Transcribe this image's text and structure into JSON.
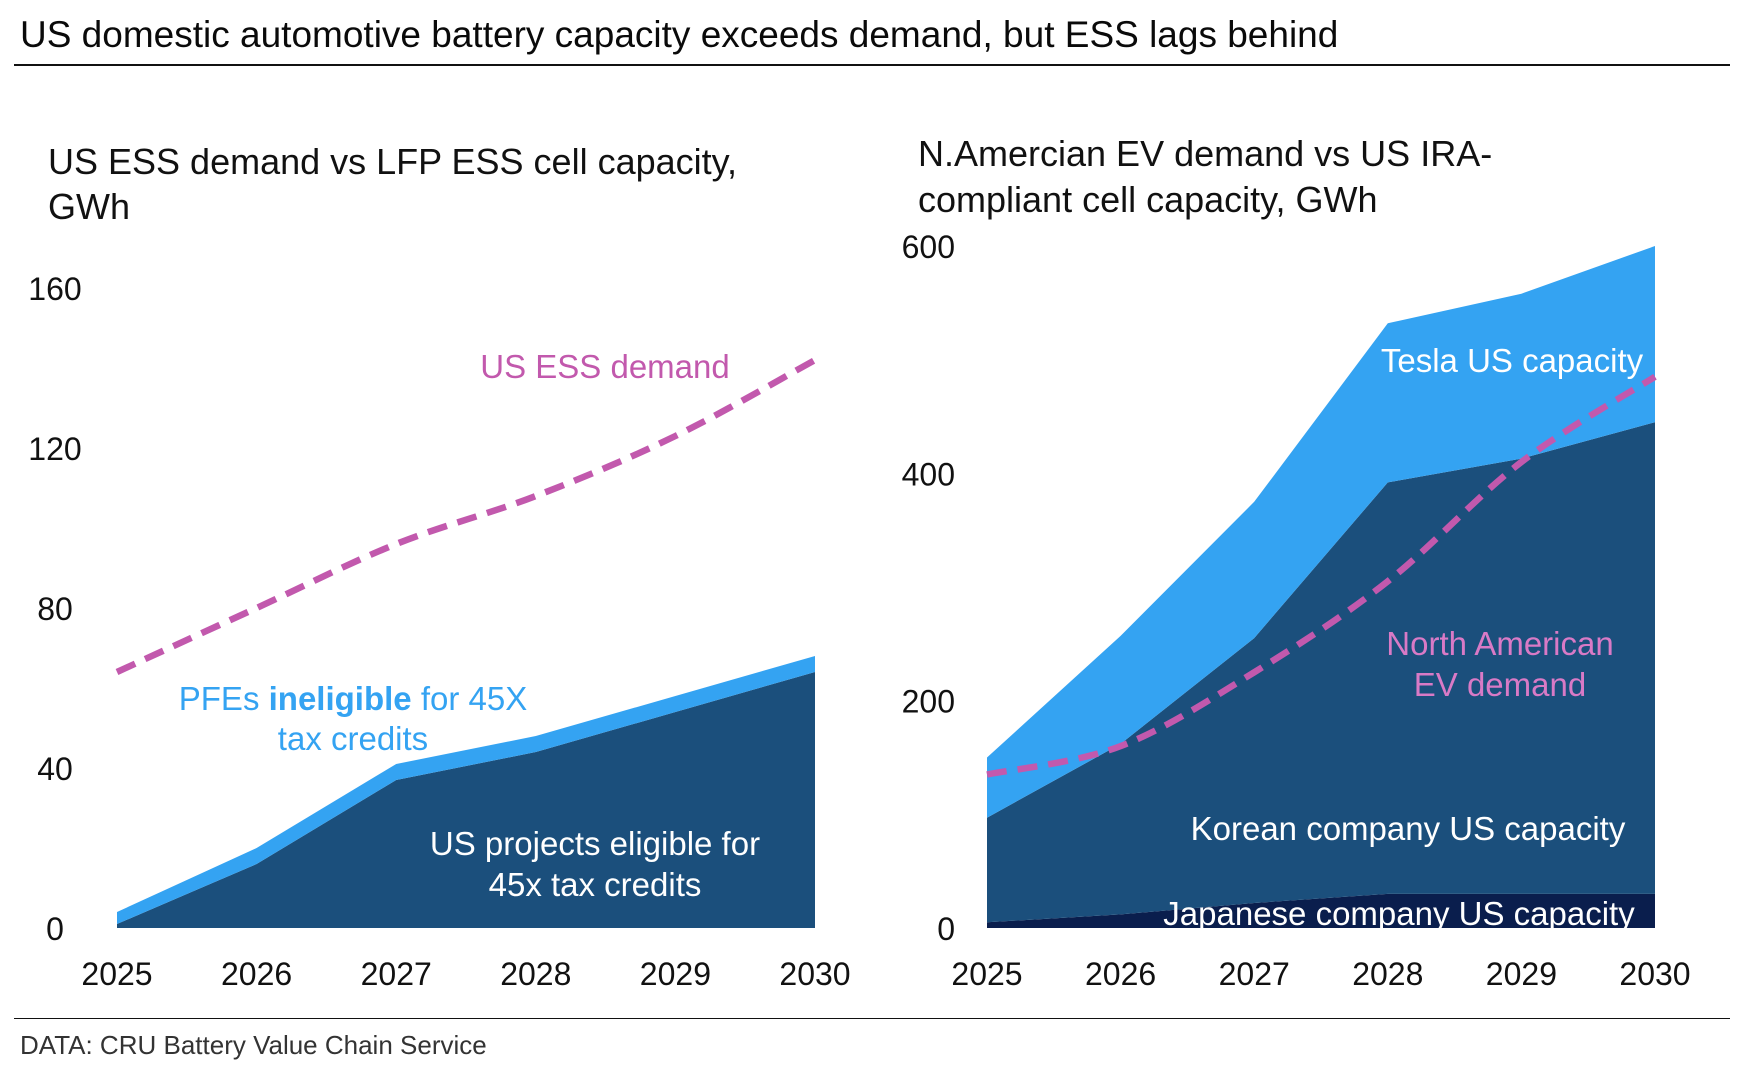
{
  "header": {
    "title": "US domestic automotive battery capacity exceeds demand, but ESS lags behind"
  },
  "footer": {
    "source": "DATA: CRU Battery Value Chain Service"
  },
  "colors": {
    "dark": "#1b4f7c",
    "light": "#34a3f2",
    "navy": "#0a1e4d",
    "pink": "#c259ad",
    "pink_light": "#d97ac6"
  },
  "chart_data": [
    {
      "type": "area",
      "title": "US ESS demand vs LFP ESS cell capacity, GWh",
      "x": [
        2025,
        2026,
        2027,
        2028,
        2029,
        2030
      ],
      "xtick_labels": [
        "2025",
        "2026",
        "2027",
        "2028",
        "2029",
        "2030"
      ],
      "ylim": [
        0,
        160
      ],
      "yticks": [
        0,
        40,
        80,
        120,
        160
      ],
      "ytick_labels": [
        "0",
        "40",
        "80",
        "120",
        "160"
      ],
      "grid": false,
      "stacked": true,
      "series": [
        {
          "name": "US projects eligible for 45x tax credits",
          "values": [
            1,
            16,
            37,
            44,
            54,
            64
          ],
          "color": "#1b4f7c"
        },
        {
          "name": "PFEs ineligible for 45X tax credits",
          "values": [
            3,
            4,
            4,
            4,
            4,
            4
          ],
          "color": "#34a3f2"
        }
      ],
      "lines": [
        {
          "name": "US ESS demand",
          "values": [
            64,
            80,
            96,
            108,
            123,
            142
          ],
          "color": "#c259ad",
          "style": "dashed"
        }
      ],
      "annotations": {
        "demand_label": "US ESS demand",
        "pfe_line1_pre": "PFEs ",
        "pfe_line1_bold": "ineligible",
        "pfe_line1_post": " for 45X",
        "pfe_line2": "tax credits",
        "eligible_line1": "US projects eligible for",
        "eligible_line2": "45x tax credits"
      }
    },
    {
      "type": "area",
      "title_line1": "N.Amercian EV demand vs US IRA-",
      "title_line2": "compliant cell capacity, GWh",
      "x": [
        2025,
        2026,
        2027,
        2028,
        2029,
        2030
      ],
      "xtick_labels": [
        "2025",
        "2026",
        "2027",
        "2028",
        "2029",
        "2030"
      ],
      "ylim": [
        0,
        600
      ],
      "yticks": [
        0,
        200,
        400,
        600
      ],
      "ytick_labels": [
        "0",
        "200",
        "400",
        "600"
      ],
      "grid": false,
      "stacked": true,
      "series": [
        {
          "name": "Japanese company US capacity",
          "values": [
            5,
            12,
            22,
            30,
            30,
            30
          ],
          "color": "#0a1e4d"
        },
        {
          "name": "Korean company US capacity",
          "values": [
            92,
            150,
            233,
            362,
            383,
            415
          ],
          "color": "#1b4f7c"
        },
        {
          "name": "Tesla US capacity",
          "values": [
            53,
            95,
            120,
            140,
            145,
            155
          ],
          "color": "#34a3f2"
        }
      ],
      "lines": [
        {
          "name": "North American EV demand",
          "values": [
            135,
            160,
            225,
            305,
            410,
            485
          ],
          "color": "#c259ad",
          "style": "dashed"
        }
      ],
      "annotations": {
        "tesla": "Tesla US capacity",
        "demand_line1": "North American",
        "demand_line2": "EV demand",
        "korean": "Korean company US capacity",
        "japanese": "Japanese company US capacity"
      }
    }
  ]
}
